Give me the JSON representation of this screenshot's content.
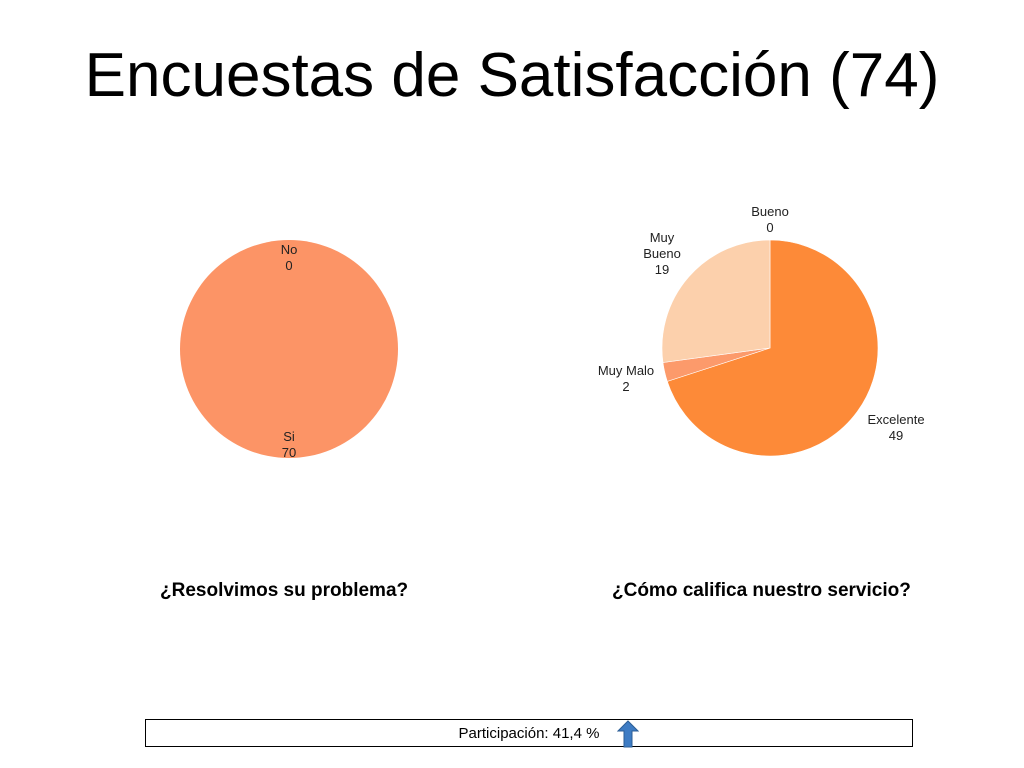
{
  "title": "Encuestas de Satisfacción (74)",
  "chart_data": [
    {
      "type": "pie",
      "subtitle": "¿Resolvimos su problema?",
      "slices": [
        {
          "label": "No",
          "value": 0,
          "color": "#FCD2AE"
        },
        {
          "label": "Si",
          "value": 70,
          "color": "#FC9466"
        }
      ]
    },
    {
      "type": "pie",
      "subtitle": "¿Cómo califica nuestro servicio?",
      "slices": [
        {
          "label": "Excelente",
          "value": 49,
          "color": "#FD8A38"
        },
        {
          "label": "Muy Malo",
          "value": 2,
          "color": "#FC9A6B"
        },
        {
          "label": "Muy Bueno",
          "value": 19,
          "color": "#FCD0AC"
        },
        {
          "label": "Bueno",
          "value": 0,
          "color": "#FCD8B8"
        }
      ]
    }
  ],
  "footer": {
    "text": "Participación: 41,4 %",
    "icon": "up-arrow-icon",
    "icon_color": "#3E7CC4"
  }
}
